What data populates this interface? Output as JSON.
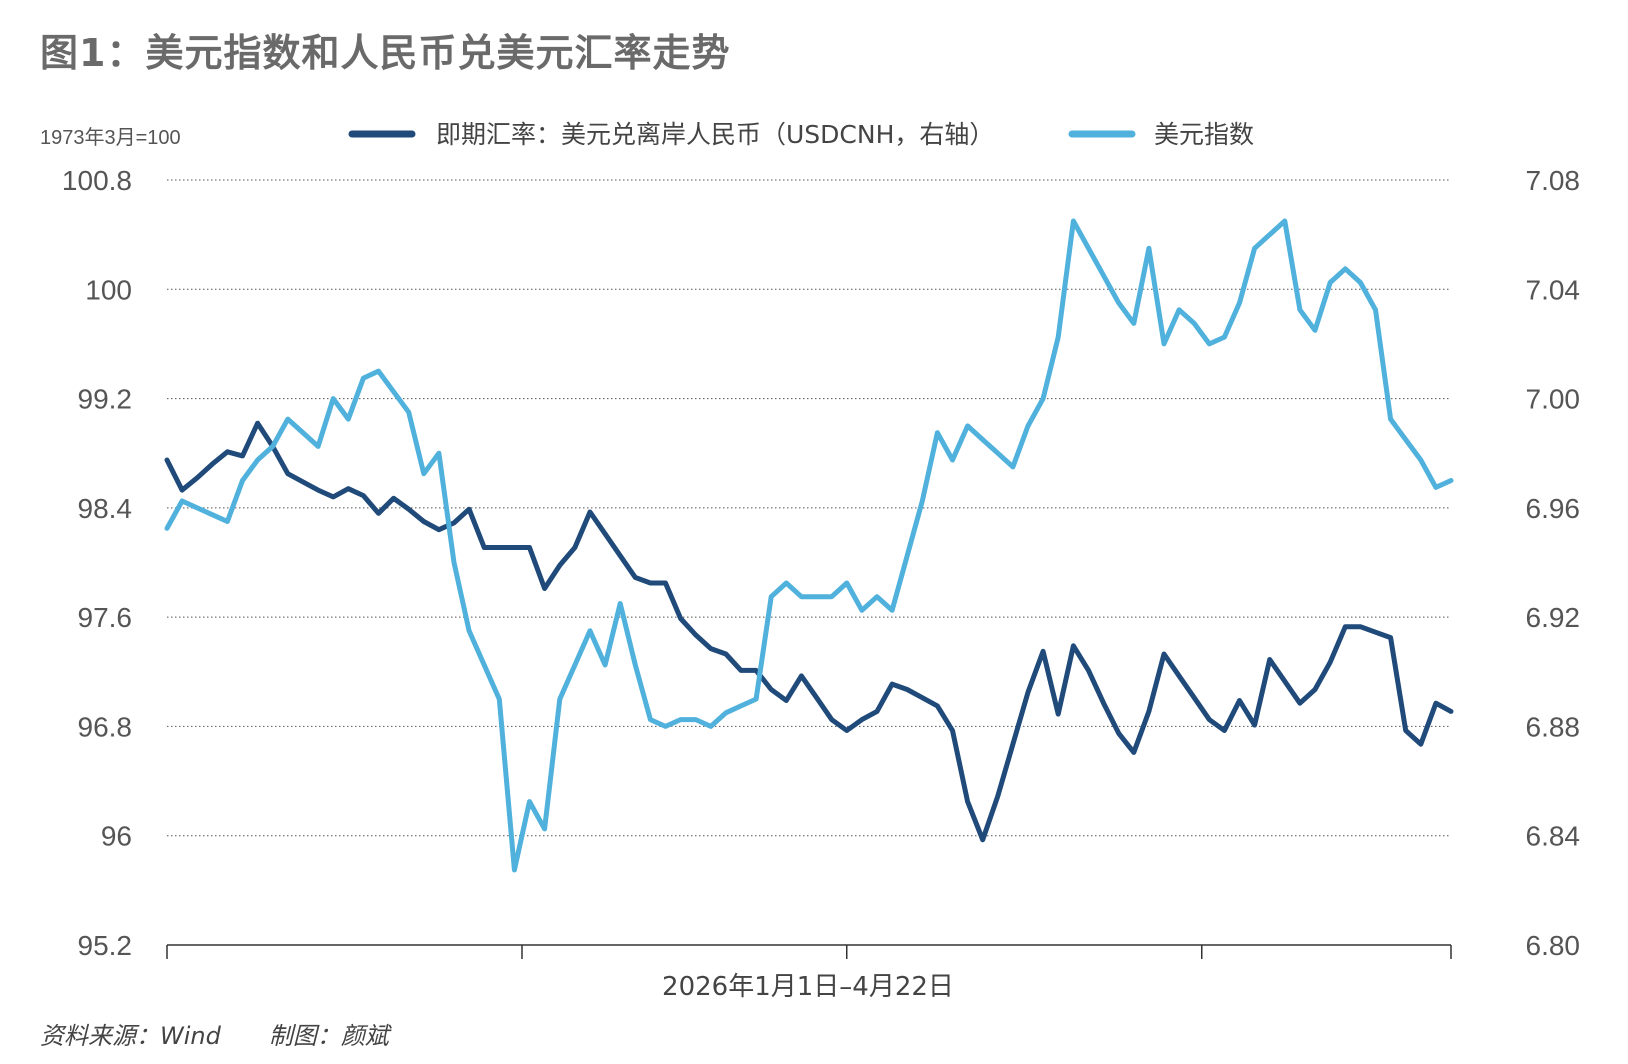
{
  "header": {
    "title": "图1：美元指数和人民币兑美元汇率走势"
  },
  "footer": {
    "source": "资料来源：Wind",
    "author": "制图：颜斌"
  },
  "chart_data": {
    "type": "line",
    "left_axis_note": "1973年3月=100",
    "xlabel": "2026年1月1日–4月22日",
    "grid": "horizontal dotted",
    "legend_position": "top-center",
    "left_axis": {
      "range": [
        95.2,
        100.8
      ],
      "ticks": [
        "95.2",
        "96",
        "96.8",
        "97.6",
        "98.4",
        "99.2",
        "100",
        "100.8"
      ]
    },
    "right_axis": {
      "range": [
        6.8,
        7.08
      ],
      "ticks": [
        "6.80",
        "6.84",
        "6.88",
        "6.92",
        "6.96",
        "7.00",
        "7.04",
        "7.08"
      ]
    },
    "x_index_range": [
      0,
      85
    ],
    "x_tick_indices": [
      0,
      23.5,
      45,
      68.5,
      85
    ],
    "series": [
      {
        "name": "即期汇率：美元兑离岸人民币（USDCNH，右轴）",
        "axis": "right",
        "color": "#1f4a7a",
        "values": [
          6.9775,
          6.9665,
          6.971,
          6.976,
          6.9805,
          6.979,
          6.991,
          6.9825,
          6.9725,
          6.9695,
          6.9665,
          6.964,
          6.967,
          6.9645,
          6.958,
          6.9635,
          6.9595,
          6.955,
          6.952,
          6.9545,
          6.9595,
          6.9455,
          6.9455,
          6.9455,
          6.9455,
          6.9305,
          6.939,
          6.9455,
          6.9585,
          6.9505,
          6.9425,
          6.9345,
          6.9325,
          6.9325,
          6.9195,
          6.9135,
          6.9085,
          6.9065,
          6.9005,
          6.9005,
          6.8935,
          6.8895,
          6.8985,
          6.8905,
          6.8825,
          6.8785,
          6.8825,
          6.8855,
          6.8955,
          6.8935,
          6.8905,
          6.8875,
          6.8785,
          6.8525,
          6.8385,
          6.8545,
          6.8735,
          6.8925,
          6.9075,
          6.8845,
          6.9095,
          6.9005,
          6.8885,
          6.8775,
          6.8705,
          6.8855,
          6.9065,
          6.8985,
          6.8905,
          6.8825,
          6.8785,
          6.8895,
          6.8805,
          6.9045,
          6.8965,
          6.8885,
          6.8935,
          6.9035,
          6.9165,
          6.9165,
          6.9145,
          6.9125,
          6.8785,
          6.8735,
          6.8885,
          6.8855
        ]
      },
      {
        "name": "美元指数",
        "axis": "left",
        "color": "#4fb1dc",
        "values": [
          98.25,
          98.45,
          98.4,
          98.35,
          98.3,
          98.6,
          98.75,
          98.85,
          99.05,
          98.95,
          98.85,
          99.2,
          99.05,
          99.35,
          99.4,
          99.25,
          99.1,
          98.65,
          98.8,
          98.0,
          97.5,
          97.25,
          97.0,
          95.75,
          96.25,
          96.05,
          97.0,
          97.25,
          97.5,
          97.25,
          97.7,
          97.25,
          96.85,
          96.8,
          96.85,
          96.85,
          96.8,
          96.9,
          96.95,
          97.0,
          97.75,
          97.85,
          97.75,
          97.75,
          97.75,
          97.85,
          97.65,
          97.75,
          97.65,
          98.05,
          98.45,
          98.95,
          98.75,
          99.0,
          98.9,
          98.8,
          98.7,
          99.0,
          99.2,
          99.65,
          100.5,
          100.3,
          100.1,
          99.9,
          99.75,
          100.3,
          99.6,
          99.85,
          99.75,
          99.6,
          99.65,
          99.9,
          100.3,
          100.4,
          100.5,
          99.85,
          99.7,
          100.05,
          100.15,
          100.05,
          99.85,
          99.05,
          98.9,
          98.75,
          98.55,
          98.6
        ]
      }
    ]
  }
}
